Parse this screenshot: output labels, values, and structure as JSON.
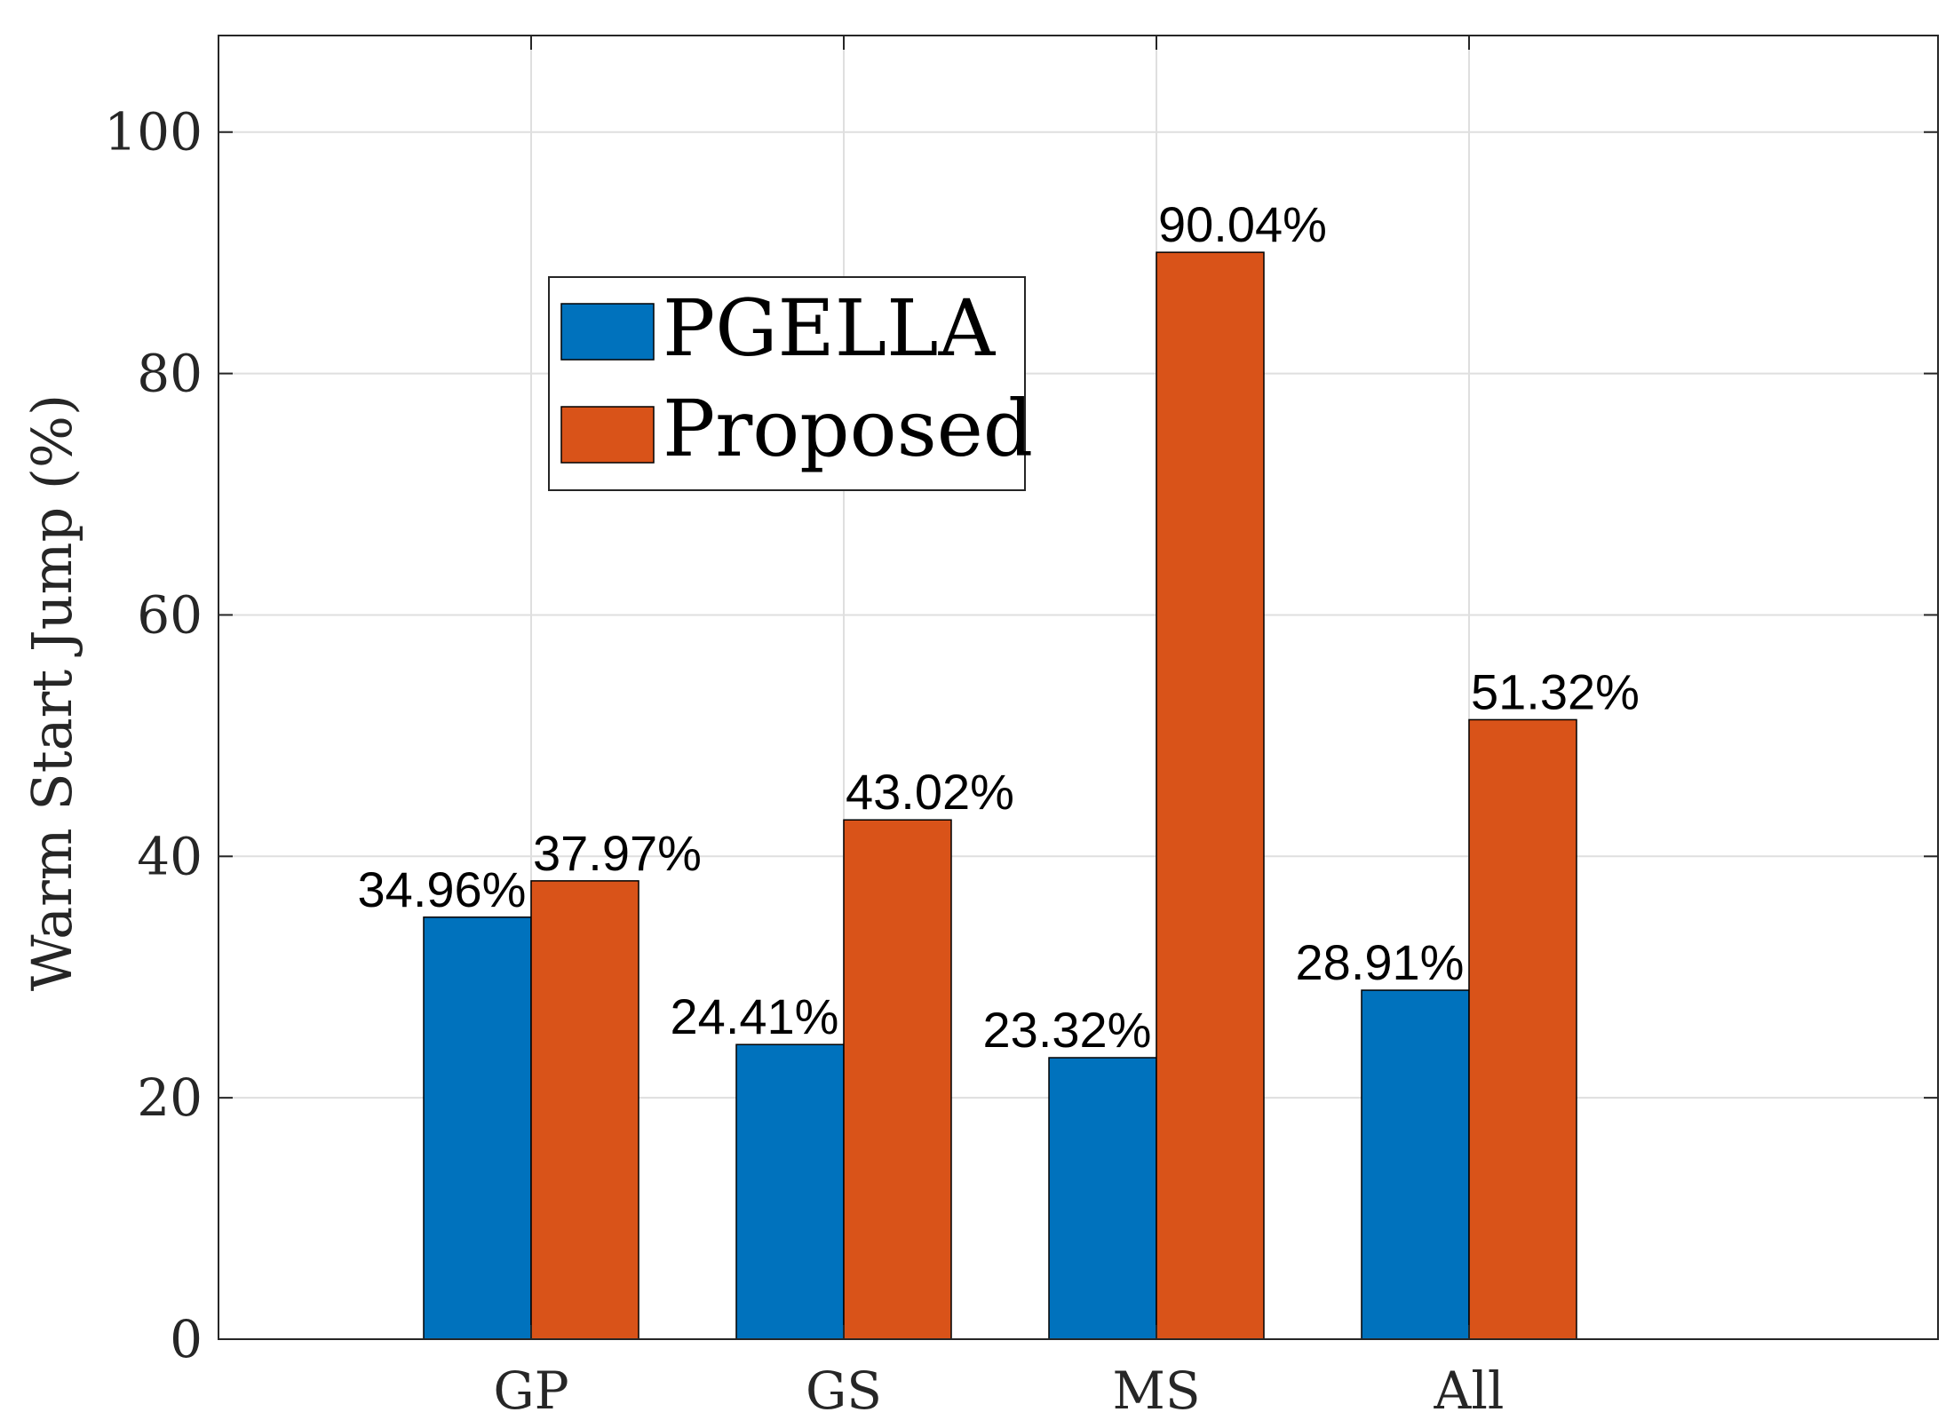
{
  "chart_data": {
    "type": "bar",
    "categories": [
      "GP",
      "GS",
      "MS",
      "All"
    ],
    "series": [
      {
        "name": "PGELLA",
        "color": "#0072BD",
        "values": [
          34.96,
          24.41,
          23.32,
          28.91
        ],
        "labels": [
          "34.96%",
          "24.41%",
          "23.32%",
          "28.91%"
        ]
      },
      {
        "name": "Proposed",
        "color": "#D95319",
        "values": [
          37.97,
          43.02,
          90.04,
          51.32
        ],
        "labels": [
          "37.97%",
          "43.02%",
          "90.04%",
          "51.32%"
        ]
      }
    ],
    "title": "",
    "xlabel": "",
    "ylabel": "Warm Start Jump (%)",
    "ylim": [
      0,
      108
    ],
    "yticks": [
      0,
      20,
      40,
      60,
      80,
      100
    ],
    "grid": true,
    "legend_position": "top-left"
  }
}
